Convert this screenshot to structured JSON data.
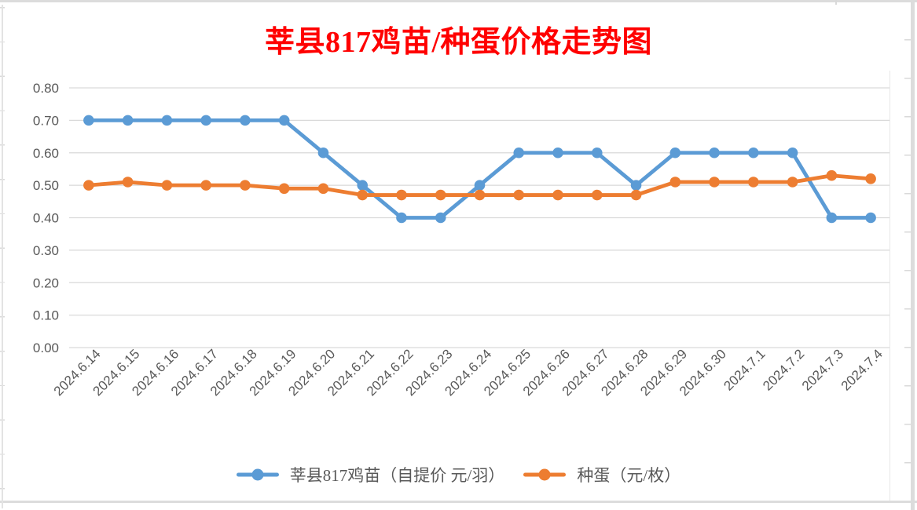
{
  "title": "莘县817鸡苗/种蛋价格走势图",
  "colors": {
    "title": "#FF0000",
    "series1": "#5B9BD5",
    "series2": "#ED7D31",
    "gridline": "#D9D9D9",
    "axis_text": "#595959",
    "edge_border": "#DCDCDC"
  },
  "chart_data": {
    "type": "line",
    "title": "莘县817鸡苗/种蛋价格走势图",
    "categories": [
      "2024.6.14",
      "2024.6.15",
      "2024.6.16",
      "2024.6.17",
      "2024.6.18",
      "2024.6.19",
      "2024.6.20",
      "2024.6.21",
      "2024.6.22",
      "2024.6.23",
      "2024.6.24",
      "2024.6.25",
      "2024.6.26",
      "2024.6.27",
      "2024.6.28",
      "2024.6.29",
      "2024.6.30",
      "2024.7.1",
      "2024.7.2",
      "2024.7.3",
      "2024.7.4"
    ],
    "series": [
      {
        "name": "莘县817鸡苗（自提价 元/羽）",
        "color": "#5B9BD5",
        "values": [
          0.7,
          0.7,
          0.7,
          0.7,
          0.7,
          0.7,
          0.6,
          0.5,
          0.4,
          0.4,
          0.5,
          0.6,
          0.6,
          0.6,
          0.5,
          0.6,
          0.6,
          0.6,
          0.6,
          0.4,
          0.4
        ]
      },
      {
        "name": "种蛋（元/枚）",
        "color": "#ED7D31",
        "values": [
          0.5,
          0.51,
          0.5,
          0.5,
          0.5,
          0.49,
          0.49,
          0.47,
          0.47,
          0.47,
          0.47,
          0.47,
          0.47,
          0.47,
          0.47,
          0.51,
          0.51,
          0.51,
          0.51,
          0.53,
          0.52
        ]
      }
    ],
    "ylim": [
      0.0,
      0.8
    ],
    "ytick_step": 0.1,
    "ytick_labels": [
      "0.00",
      "0.10",
      "0.20",
      "0.30",
      "0.40",
      "0.50",
      "0.60",
      "0.70",
      "0.80"
    ],
    "grid": "horizontal",
    "legend_position": "bottom",
    "xlabel": "",
    "ylabel": ""
  }
}
